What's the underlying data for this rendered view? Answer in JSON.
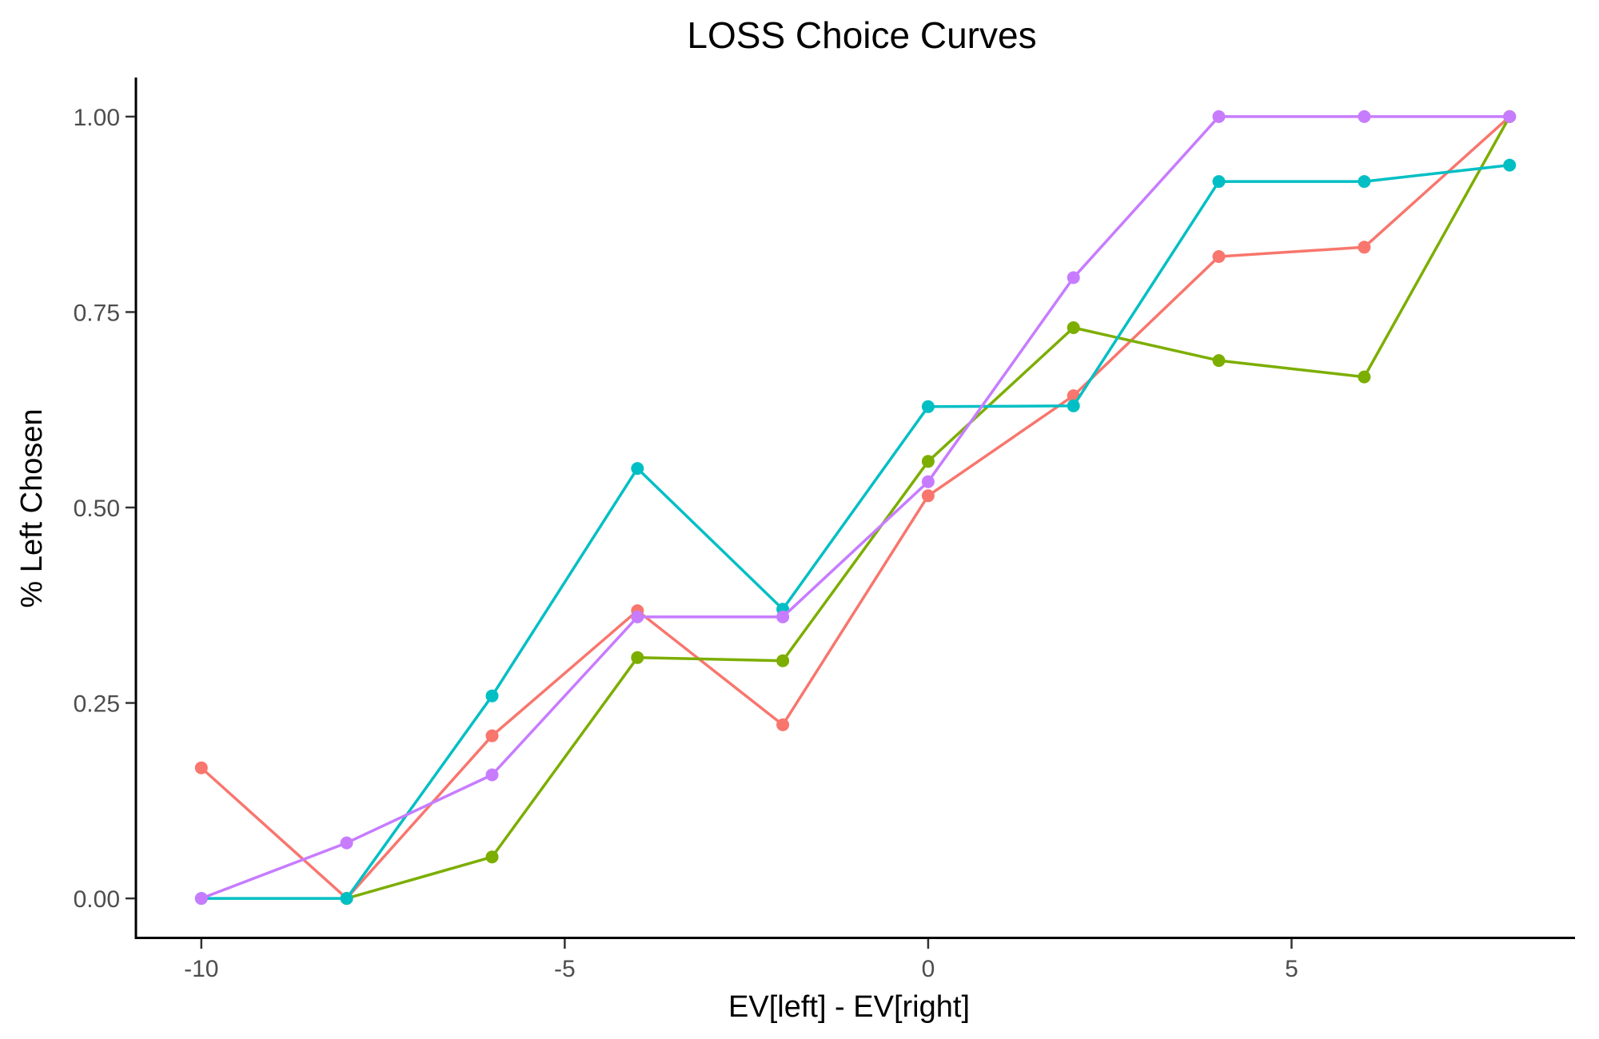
{
  "chart_data": {
    "type": "line",
    "title": "LOSS Choice Curves",
    "xlabel": "EV[left] - EV[right]",
    "ylabel": "% Left Chosen",
    "xlim": [
      -10.9,
      8.9
    ],
    "ylim": [
      -0.05,
      1.05
    ],
    "x_ticks": [
      -10,
      -5,
      0,
      5
    ],
    "x_tick_labels": [
      "-10",
      "-5",
      "0",
      "5"
    ],
    "y_ticks": [
      0,
      0.25,
      0.5,
      0.75,
      1.0
    ],
    "y_tick_labels": [
      "0.00",
      "0.25",
      "0.50",
      "0.75",
      "1.00"
    ],
    "grid": false,
    "legend": "none",
    "x": [
      -10,
      -8,
      -6,
      -4,
      -2,
      0,
      2,
      4,
      6,
      8
    ],
    "series": [
      {
        "color": "#F8766D",
        "values": [
          0.167,
          0.0,
          0.208,
          0.368,
          0.222,
          0.515,
          0.643,
          0.821,
          0.833,
          1.0
        ]
      },
      {
        "color": "#7CAE00",
        "x": [
          -8,
          -6,
          -4,
          -2,
          0,
          2,
          4,
          6,
          8
        ],
        "values": [
          0.0,
          0.053,
          0.308,
          0.304,
          0.559,
          0.73,
          0.688,
          0.667,
          1.0
        ]
      },
      {
        "color": "#00BFC4",
        "values": [
          0.0,
          0.0,
          0.259,
          0.55,
          0.37,
          0.629,
          0.63,
          0.917,
          0.917,
          0.938
        ]
      },
      {
        "color": "#C77CFF",
        "values": [
          0.0,
          0.071,
          0.158,
          0.36,
          0.36,
          0.533,
          0.794,
          1.0,
          1.0,
          1.0
        ]
      }
    ]
  }
}
